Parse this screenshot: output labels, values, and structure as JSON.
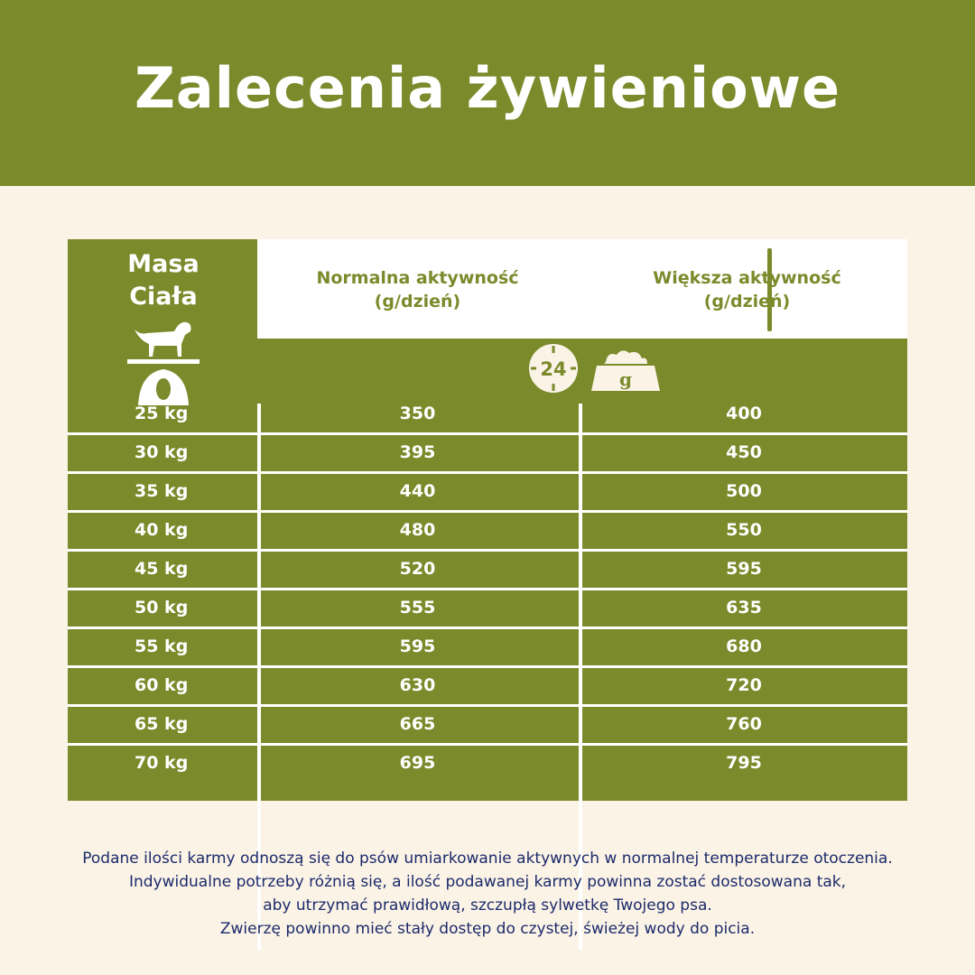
{
  "title": "Zalecenia żywieniowe",
  "table": {
    "weight_header": [
      "Masa",
      "Ciała"
    ],
    "normal_header": [
      "Normalna aktywność",
      "(g/dzień)"
    ],
    "higher_header": [
      "Większa aktywność",
      "(g/dzień)"
    ],
    "clock_label": "24",
    "bowl_label": "g",
    "rows": [
      {
        "weight": "25 kg",
        "normal": "350",
        "higher": "400"
      },
      {
        "weight": "30 kg",
        "normal": "395",
        "higher": "450"
      },
      {
        "weight": "35 kg",
        "normal": "440",
        "higher": "500"
      },
      {
        "weight": "40 kg",
        "normal": "480",
        "higher": "550"
      },
      {
        "weight": "45 kg",
        "normal": "520",
        "higher": "595"
      },
      {
        "weight": "50 kg",
        "normal": "555",
        "higher": "635"
      },
      {
        "weight": "55 kg",
        "normal": "595",
        "higher": "680"
      },
      {
        "weight": "60 kg",
        "normal": "630",
        "higher": "720"
      },
      {
        "weight": "65 kg",
        "normal": "665",
        "higher": "760"
      },
      {
        "weight": "70 kg",
        "normal": "695",
        "higher": "795"
      }
    ]
  },
  "note": [
    "Podane ilości karmy odnoszą się do psów umiarkowanie aktywnych w normalnej temperaturze otoczenia.",
    "Indywidualne potrzeby różnią się, a ilość podawanej karmy powinna zostać dostosowana tak,",
    "aby utrzymać prawidłową, szczupłą sylwetkę Twojego psa.",
    "Zwierzę powinno mieć stały dostęp do czystej, świeżej wody do picia."
  ],
  "colors": {
    "green": "#7b8a2b",
    "cream": "#faf3e6",
    "navy": "#1d2a6b"
  }
}
